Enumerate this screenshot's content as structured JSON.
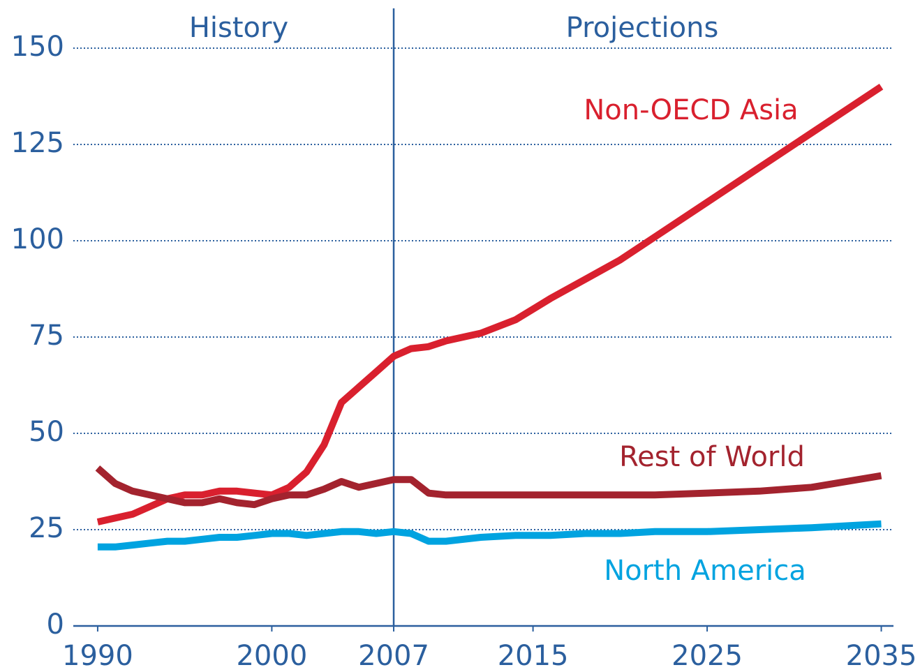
{
  "chart_data": {
    "type": "line",
    "annotations": [
      "History",
      "Projections"
    ],
    "divider_x": 2007,
    "x": [
      1990,
      1991,
      1992,
      1993,
      1994,
      1995,
      1996,
      1997,
      1998,
      1999,
      2000,
      2001,
      2002,
      2003,
      2004,
      2005,
      2006,
      2007,
      2008,
      2009,
      2010,
      2012,
      2014,
      2016,
      2018,
      2020,
      2022,
      2025,
      2028,
      2031,
      2035
    ],
    "series": [
      {
        "name": "Non-OECD Asia",
        "color": "#d9202e",
        "values": [
          27,
          28,
          29,
          31,
          33,
          34,
          34,
          35,
          35,
          34.5,
          34,
          36,
          40,
          47,
          58,
          62,
          66,
          70,
          72,
          72.5,
          74,
          76,
          79.5,
          85,
          90,
          95,
          101,
          110,
          119,
          128,
          140
        ]
      },
      {
        "name": "Rest of World",
        "color": "#a3232e",
        "values": [
          41,
          37,
          35,
          34,
          33,
          32,
          32,
          33,
          32,
          31.5,
          33,
          34,
          34,
          35.5,
          37.5,
          36,
          37,
          38,
          38,
          34.5,
          34,
          34,
          34,
          34,
          34,
          34,
          34,
          34.5,
          35,
          36,
          39
        ]
      },
      {
        "name": "North America",
        "color": "#00a3e0",
        "values": [
          20.5,
          20.5,
          21,
          21.5,
          22,
          22,
          22.5,
          23,
          23,
          23.5,
          24,
          24,
          23.5,
          24,
          24.5,
          24.5,
          24,
          24.5,
          24,
          22,
          22,
          23,
          23.5,
          23.5,
          24,
          24,
          24.5,
          24.5,
          25,
          25.5,
          26.5
        ]
      }
    ],
    "xlim": [
      1988.6,
      2035.7
    ],
    "xticks": [
      1990,
      2000,
      2007,
      2015,
      2025,
      2035
    ],
    "ylim": [
      0,
      150
    ],
    "yticks": [
      0,
      25,
      50,
      75,
      100,
      125,
      150
    ],
    "grid": true,
    "axis_color": "#2b5f9e"
  }
}
